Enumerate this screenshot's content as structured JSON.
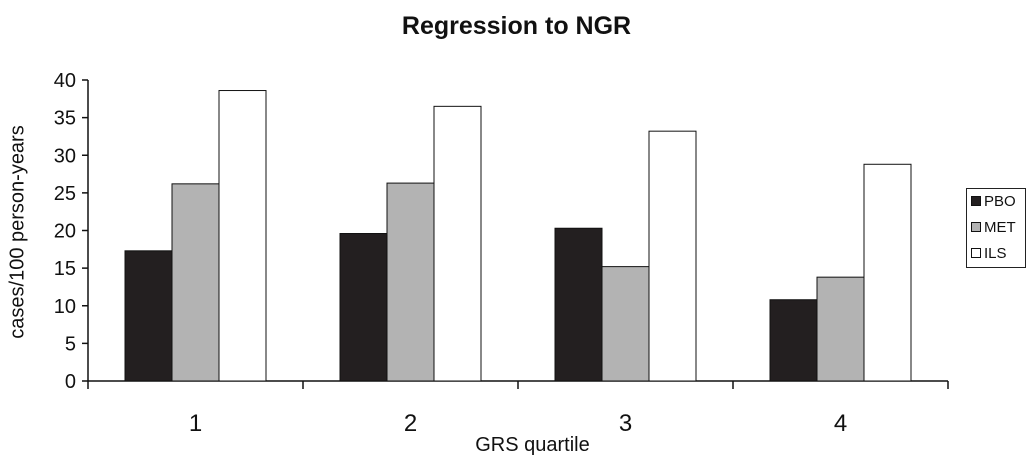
{
  "chart_data": {
    "type": "bar",
    "title": "Regression to NGR",
    "xlabel": "GRS quartile",
    "ylabel": "cases/100 person-years",
    "categories": [
      "1",
      "2",
      "3",
      "4"
    ],
    "ylim": [
      0,
      40
    ],
    "yticks": [
      "0",
      "5",
      "10",
      "15",
      "20",
      "25",
      "30",
      "35",
      "40"
    ],
    "grid": false,
    "legend_position": "right",
    "series": [
      {
        "name": "PBO",
        "color": "#231f20",
        "values": [
          17.3,
          19.6,
          20.3,
          10.8
        ]
      },
      {
        "name": "MET",
        "color": "#b3b3b3",
        "values": [
          26.2,
          26.3,
          15.2,
          13.8
        ]
      },
      {
        "name": "ILS",
        "color": "#ffffff",
        "values": [
          38.6,
          36.5,
          33.2,
          28.8
        ]
      }
    ]
  }
}
